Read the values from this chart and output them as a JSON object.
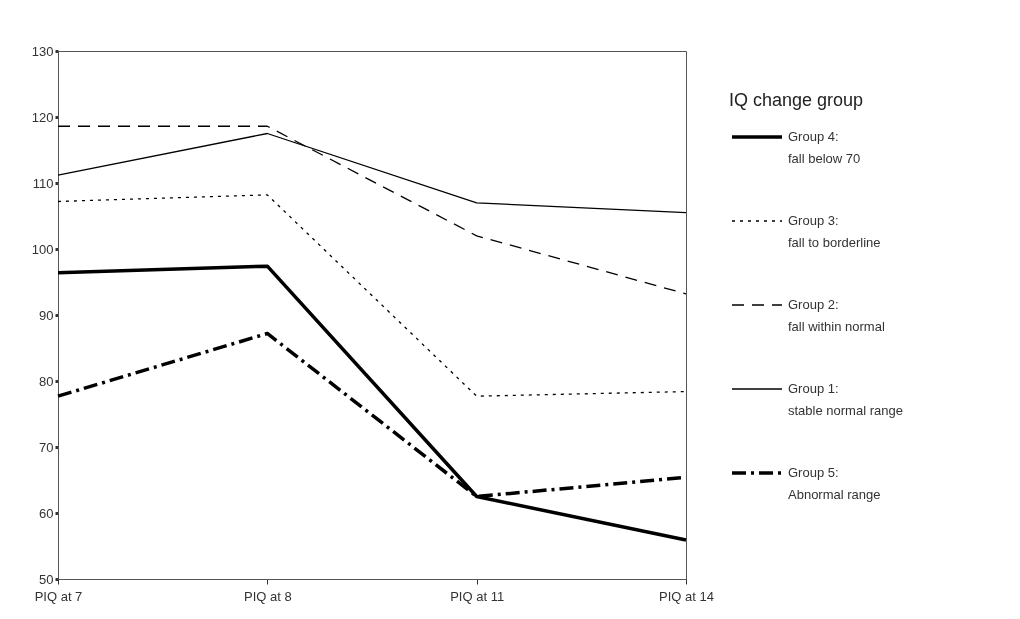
{
  "chart_data": {
    "type": "line",
    "legend_title": "IQ change group",
    "legend": "right",
    "categories": [
      "PIQ at 7",
      "PIQ at 8",
      "PIQ at 11",
      "PIQ at 14"
    ],
    "series": [
      {
        "name": "Group 4:\nfall below 70",
        "color": "#000000",
        "line_style": "solid",
        "values": [
          96.4,
          97.4,
          62.5,
          55.9
        ]
      },
      {
        "name": "Group 3:\nfall to borderline",
        "color": "#000000",
        "line_style": "dotted",
        "values": [
          107.2,
          108.2,
          77.7,
          78.4
        ]
      },
      {
        "name": "Group 2:\nfall within normal",
        "color": "#000000",
        "line_style": "dashed",
        "values": [
          118.6,
          118.6,
          102.0,
          93.2
        ]
      },
      {
        "name": "Group 1:\nstable normal range",
        "color": "#000000",
        "line_style": "solid",
        "values": [
          111.2,
          117.5,
          107.0,
          105.5
        ]
      },
      {
        "name": "Group 5:\nAbnormal range",
        "color": "#000000",
        "line_style": "dashdot",
        "values": [
          77.7,
          87.2,
          62.5,
          65.4
        ]
      }
    ],
    "ylim": [
      50,
      130
    ],
    "yticks": [
      50,
      60,
      70,
      80,
      90,
      100,
      110,
      120,
      130
    ],
    "grid": false,
    "marker": "none"
  }
}
